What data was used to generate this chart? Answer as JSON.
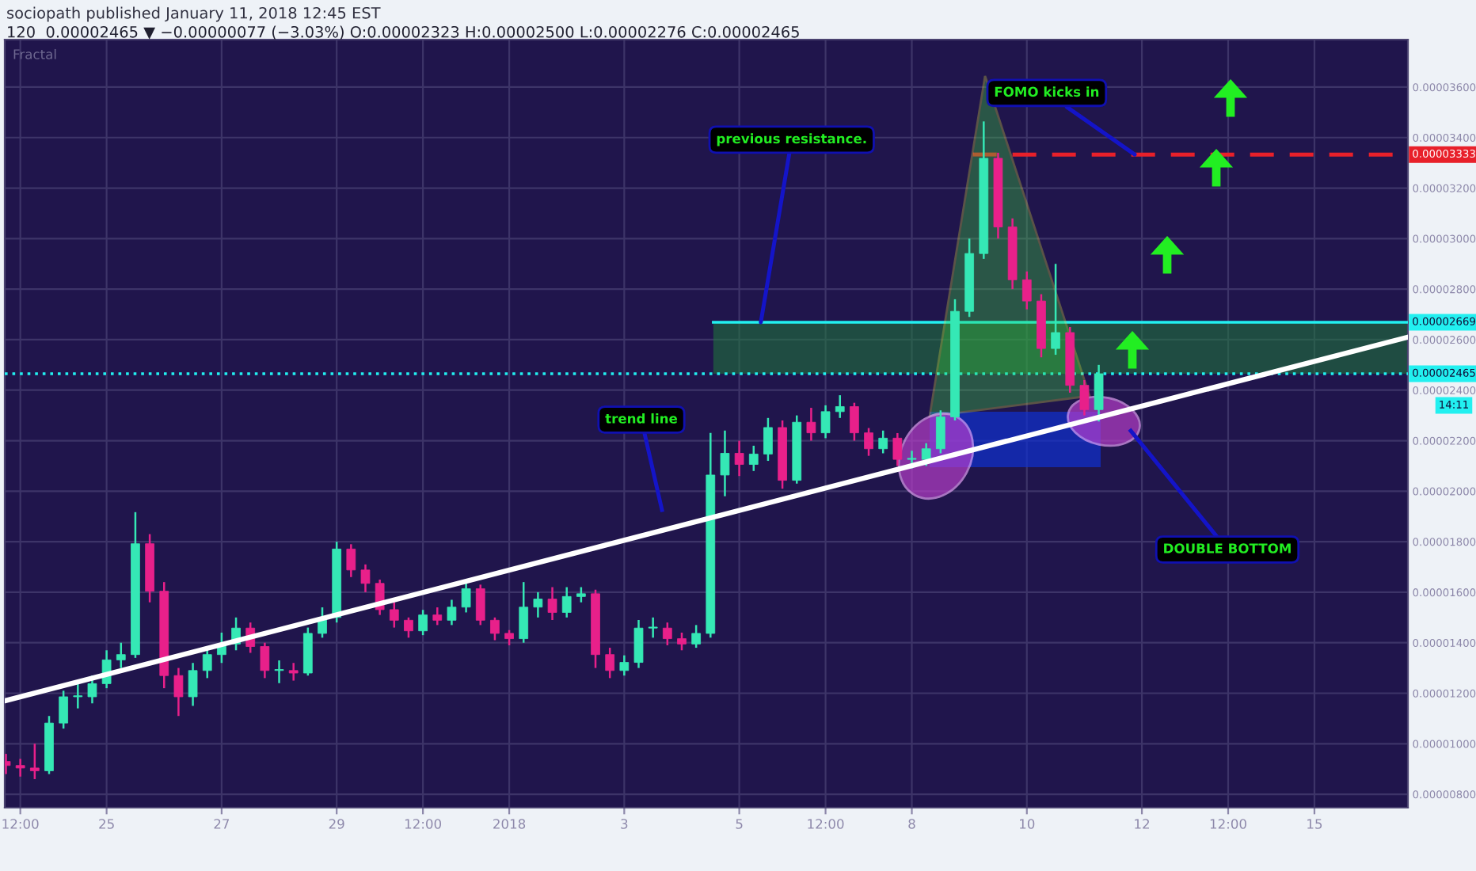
{
  "chart_data": {
    "type": "candlestick",
    "title": "sociopath published January 11, 2018 12:45 EST",
    "subtitle": "120  0.00002465 ▼ −0.00000077 (−3.03%) O:0.00002323 H:0.00002500 L:0.00002276 C:0.00002465",
    "x": [
      "2017-12-23T06:00",
      "2017-12-23T12:00",
      "2017-12-23T18:00",
      "2017-12-24T00:00",
      "2017-12-24T06:00",
      "2017-12-24T12:00",
      "2017-12-24T18:00",
      "2017-12-25T00:00",
      "2017-12-25T06:00",
      "2017-12-25T12:00",
      "2017-12-25T18:00",
      "2017-12-26T00:00",
      "2017-12-26T06:00",
      "2017-12-26T12:00",
      "2017-12-26T18:00",
      "2017-12-27T00:00",
      "2017-12-27T06:00",
      "2017-12-27T12:00",
      "2017-12-27T18:00",
      "2017-12-28T00:00",
      "2017-12-28T06:00",
      "2017-12-28T12:00",
      "2017-12-28T18:00",
      "2017-12-29T00:00",
      "2017-12-29T06:00",
      "2017-12-29T12:00",
      "2017-12-29T18:00",
      "2017-12-30T00:00",
      "2017-12-30T06:00",
      "2017-12-30T12:00",
      "2017-12-30T18:00",
      "2017-12-31T00:00",
      "2017-12-31T06:00",
      "2017-12-31T12:00",
      "2017-12-31T18:00",
      "2018-01-01T00:00",
      "2018-01-01T06:00",
      "2018-01-01T12:00",
      "2018-01-01T18:00",
      "2018-01-02T00:00",
      "2018-01-02T06:00",
      "2018-01-02T12:00",
      "2018-01-02T18:00",
      "2018-01-03T00:00",
      "2018-01-03T06:00",
      "2018-01-03T12:00",
      "2018-01-03T18:00",
      "2018-01-04T00:00",
      "2018-01-04T06:00",
      "2018-01-04T12:00",
      "2018-01-04T18:00",
      "2018-01-05T00:00",
      "2018-01-05T06:00",
      "2018-01-05T12:00",
      "2018-01-05T18:00",
      "2018-01-06T00:00",
      "2018-01-06T06:00",
      "2018-01-06T12:00",
      "2018-01-06T18:00",
      "2018-01-07T00:00",
      "2018-01-07T06:00",
      "2018-01-07T12:00",
      "2018-01-07T18:00",
      "2018-01-08T00:00",
      "2018-01-08T06:00",
      "2018-01-08T12:00",
      "2018-01-08T18:00",
      "2018-01-09T00:00",
      "2018-01-09T06:00",
      "2018-01-09T12:00",
      "2018-01-09T18:00",
      "2018-01-10T00:00",
      "2018-01-10T06:00",
      "2018-01-10T12:00",
      "2018-01-10T18:00",
      "2018-01-11T00:00",
      "2018-01-11T06:00"
    ],
    "ohlc": [
      [
        9.3e-06,
        9.6e-06,
        8.8e-06,
        9.14e-06
      ],
      [
        9.14e-06,
        9.4e-06,
        8.7e-06,
        9.04e-06
      ],
      [
        9.04e-06,
        1e-05,
        8.6e-06,
        8.93e-06
      ],
      [
        8.93e-06,
        1.11e-05,
        8.8e-06,
        1.082e-05
      ],
      [
        1.082e-05,
        1.21e-05,
        1.06e-05,
        1.186e-05
      ],
      [
        1.186e-05,
        1.24e-05,
        1.14e-05,
        1.186e-05
      ],
      [
        1.186e-05,
        1.27e-05,
        1.16e-05,
        1.238e-05
      ],
      [
        1.238e-05,
        1.37e-05,
        1.22e-05,
        1.332e-05
      ],
      [
        1.332e-05,
        1.4e-05,
        1.3e-05,
        1.353e-05
      ],
      [
        1.353e-05,
        1.917e-05,
        1.34e-05,
        1.792e-05
      ],
      [
        1.792e-05,
        1.83e-05,
        1.56e-05,
        1.604e-05
      ],
      [
        1.604e-05,
        1.64e-05,
        1.22e-05,
        1.27e-05
      ],
      [
        1.27e-05,
        1.3e-05,
        1.11e-05,
        1.186e-05
      ],
      [
        1.186e-05,
        1.32e-05,
        1.15e-05,
        1.29e-05
      ],
      [
        1.29e-05,
        1.38e-05,
        1.26e-05,
        1.353e-05
      ],
      [
        1.353e-05,
        1.44e-05,
        1.32e-05,
        1.395e-05
      ],
      [
        1.395e-05,
        1.5e-05,
        1.37e-05,
        1.458e-05
      ],
      [
        1.458e-05,
        1.48e-05,
        1.36e-05,
        1.385e-05
      ],
      [
        1.385e-05,
        1.4e-05,
        1.26e-05,
        1.29e-05
      ],
      [
        1.29e-05,
        1.33e-05,
        1.24e-05,
        1.29e-05
      ],
      [
        1.29e-05,
        1.32e-05,
        1.25e-05,
        1.28e-05
      ],
      [
        1.28e-05,
        1.46e-05,
        1.27e-05,
        1.437e-05
      ],
      [
        1.437e-05,
        1.54e-05,
        1.42e-05,
        1.5e-05
      ],
      [
        1.5e-05,
        1.8e-05,
        1.48e-05,
        1.771e-05
      ],
      [
        1.771e-05,
        1.79e-05,
        1.66e-05,
        1.688e-05
      ],
      [
        1.688e-05,
        1.71e-05,
        1.6e-05,
        1.635e-05
      ],
      [
        1.635e-05,
        1.65e-05,
        1.51e-05,
        1.531e-05
      ],
      [
        1.531e-05,
        1.56e-05,
        1.46e-05,
        1.489e-05
      ],
      [
        1.489e-05,
        1.5e-05,
        1.42e-05,
        1.447e-05
      ],
      [
        1.447e-05,
        1.53e-05,
        1.43e-05,
        1.51e-05
      ],
      [
        1.51e-05,
        1.54e-05,
        1.47e-05,
        1.489e-05
      ],
      [
        1.489e-05,
        1.57e-05,
        1.47e-05,
        1.541e-05
      ],
      [
        1.541e-05,
        1.64e-05,
        1.52e-05,
        1.614e-05
      ],
      [
        1.614e-05,
        1.63e-05,
        1.47e-05,
        1.489e-05
      ],
      [
        1.489e-05,
        1.5e-05,
        1.41e-05,
        1.437e-05
      ],
      [
        1.437e-05,
        1.45e-05,
        1.39e-05,
        1.416e-05
      ],
      [
        1.416e-05,
        1.64e-05,
        1.4e-05,
        1.541e-05
      ],
      [
        1.541e-05,
        1.6e-05,
        1.5e-05,
        1.573e-05
      ],
      [
        1.573e-05,
        1.62e-05,
        1.49e-05,
        1.52e-05
      ],
      [
        1.52e-05,
        1.62e-05,
        1.5e-05,
        1.583e-05
      ],
      [
        1.583e-05,
        1.62e-05,
        1.56e-05,
        1.594e-05
      ],
      [
        1.594e-05,
        1.61e-05,
        1.3e-05,
        1.353e-05
      ],
      [
        1.353e-05,
        1.38e-05,
        1.26e-05,
        1.29e-05
      ],
      [
        1.29e-05,
        1.35e-05,
        1.27e-05,
        1.322e-05
      ],
      [
        1.322e-05,
        1.49e-05,
        1.3e-05,
        1.458e-05
      ],
      [
        1.458e-05,
        1.5e-05,
        1.42e-05,
        1.458e-05
      ],
      [
        1.458e-05,
        1.48e-05,
        1.39e-05,
        1.416e-05
      ],
      [
        1.416e-05,
        1.44e-05,
        1.37e-05,
        1.395e-05
      ],
      [
        1.395e-05,
        1.47e-05,
        1.38e-05,
        1.437e-05
      ],
      [
        1.437e-05,
        2.231e-05,
        1.42e-05,
        2.064e-05
      ],
      [
        2.064e-05,
        2.24e-05,
        1.98e-05,
        2.15e-05
      ],
      [
        2.15e-05,
        2.2e-05,
        2.06e-05,
        2.106e-05
      ],
      [
        2.106e-05,
        2.18e-05,
        2.08e-05,
        2.147e-05
      ],
      [
        2.147e-05,
        2.29e-05,
        2.12e-05,
        2.252e-05
      ],
      [
        2.252e-05,
        2.28e-05,
        2.01e-05,
        2.043e-05
      ],
      [
        2.043e-05,
        2.3e-05,
        2.03e-05,
        2.273e-05
      ],
      [
        2.273e-05,
        2.33e-05,
        2.2e-05,
        2.231e-05
      ],
      [
        2.231e-05,
        2.34e-05,
        2.21e-05,
        2.315e-05
      ],
      [
        2.315e-05,
        2.38e-05,
        2.29e-05,
        2.335e-05
      ],
      [
        2.335e-05,
        2.35e-05,
        2.2e-05,
        2.231e-05
      ],
      [
        2.231e-05,
        2.25e-05,
        2.14e-05,
        2.168e-05
      ],
      [
        2.168e-05,
        2.24e-05,
        2.15e-05,
        2.21e-05
      ],
      [
        2.21e-05,
        2.23e-05,
        2.1e-05,
        2.126e-05
      ],
      [
        2.126e-05,
        2.16e-05,
        2.09e-05,
        2.126e-05
      ],
      [
        2.126e-05,
        2.19e-05,
        2.1e-05,
        2.168e-05
      ],
      [
        2.168e-05,
        2.32e-05,
        2.15e-05,
        2.294e-05
      ],
      [
        2.294e-05,
        2.76e-05,
        2.28e-05,
        2.712e-05
      ],
      [
        2.712e-05,
        3e-05,
        2.69e-05,
        2.941e-05
      ],
      [
        2.941e-05,
        3.464e-05,
        2.92e-05,
        3.318e-05
      ],
      [
        3.318e-05,
        3.34e-05,
        3e-05,
        3.046e-05
      ],
      [
        3.046e-05,
        3.08e-05,
        2.8e-05,
        2.837e-05
      ],
      [
        2.837e-05,
        2.87e-05,
        2.72e-05,
        2.753e-05
      ],
      [
        2.753e-05,
        2.78e-05,
        2.53e-05,
        2.565e-05
      ],
      [
        2.565e-05,
        2.9e-05,
        2.54e-05,
        2.628e-05
      ],
      [
        2.628e-05,
        2.65e-05,
        2.39e-05,
        2.419e-05
      ],
      [
        2.419e-05,
        2.44e-05,
        2.3e-05,
        2.323e-05
      ],
      [
        2.323e-05,
        2.5e-05,
        2.276e-05,
        2.465e-05
      ]
    ],
    "series": [
      {
        "type": "line",
        "color": "#ffffff",
        "x": [
          "2017-12-23T05:30",
          "2018-01-16T15:00"
        ],
        "values": [
          1.17e-05,
          2.61e-05
        ]
      }
    ],
    "xlim": [
      "2017-12-23T05:30",
      "2018-01-16T15:00"
    ],
    "xticks": [
      {
        "value": "2017-12-23T12:00",
        "label": "12:00"
      },
      {
        "value": "2017-12-25",
        "label": "25"
      },
      {
        "value": "2017-12-27",
        "label": "27"
      },
      {
        "value": "2017-12-29",
        "label": "29"
      },
      {
        "value": "2017-12-30T12:00",
        "label": "12:00"
      },
      {
        "value": "2018-01-01",
        "label": "2018"
      },
      {
        "value": "2018-01-03",
        "label": "3"
      },
      {
        "value": "2018-01-05",
        "label": "5"
      },
      {
        "value": "2018-01-06T12:00",
        "label": "12:00"
      },
      {
        "value": "2018-01-08",
        "label": "8"
      },
      {
        "value": "2018-01-10",
        "label": "10"
      },
      {
        "value": "2018-01-12",
        "label": "12"
      },
      {
        "value": "2018-01-13T12:00",
        "label": "12:00"
      },
      {
        "value": "2018-01-15",
        "label": "15"
      }
    ],
    "ylim": [
      7.47e-06,
      3.788e-05
    ],
    "yticks": [
      {
        "value": 8e-06,
        "label": "0.00000800"
      },
      {
        "value": 1e-05,
        "label": "0.00001000"
      },
      {
        "value": 1.2e-05,
        "label": "0.00001200"
      },
      {
        "value": 1.4e-05,
        "label": "0.00001400"
      },
      {
        "value": 1.6e-05,
        "label": "0.00001600"
      },
      {
        "value": 1.8e-05,
        "label": "0.00001800"
      },
      {
        "value": 2e-05,
        "label": "0.00002000"
      },
      {
        "value": 2.2e-05,
        "label": "0.00002200"
      },
      {
        "value": 2.4e-05,
        "label": "0.00002400"
      },
      {
        "value": 2.6e-05,
        "label": "0.00002600"
      },
      {
        "value": 2.8e-05,
        "label": "0.00002800"
      },
      {
        "value": 3e-05,
        "label": "0.00003000"
      },
      {
        "value": 3.2e-05,
        "label": "0.00003200"
      },
      {
        "value": 3.4e-05,
        "label": "0.00003400"
      },
      {
        "value": 3.6e-05,
        "label": "0.00003600"
      }
    ],
    "ref_lines": [
      {
        "axis": "y",
        "value": 3.333e-05,
        "label": "0.00003333",
        "color": "#e8202a",
        "line_style": "dashed"
      },
      {
        "axis": "y",
        "value": 2.669e-05,
        "label": "0.00002669",
        "color": "#22f0f0",
        "line_style": "solid"
      },
      {
        "axis": "y",
        "value": 2.465e-05,
        "label": "0.00002465",
        "color": "#22f0f0",
        "line_style": "dotted"
      }
    ],
    "bands": [
      {
        "axis": "y",
        "from": 2.465e-05,
        "to": 2.669e-05,
        "color": "#1f7a3a"
      }
    ],
    "annotations": [
      {
        "text": "previous resistance.",
        "x": "2018-01-05T09:00",
        "y": 2.669e-05
      },
      "trend line",
      {
        "text": "FOMO kicks in",
        "x": "2018-01-11T21:00",
        "y": 3.333e-05
      },
      "DOUBLE BOTTOM",
      "14:11",
      "Fractal"
    ],
    "grid": true
  }
}
